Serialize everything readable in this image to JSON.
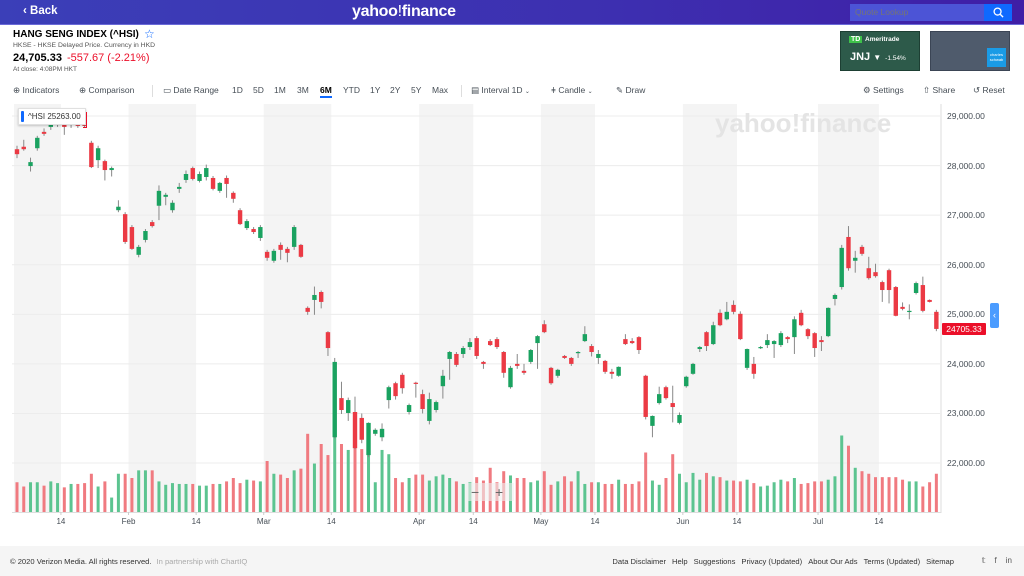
{
  "header": {
    "back_label": "Back",
    "logo_text_1": "yahoo",
    "logo_text_2": "!",
    "logo_text_3": "finance",
    "search_placeholder": "Quote Lookup",
    "search_icon": "magnifier"
  },
  "quote": {
    "title": "HANG SENG INDEX (^HSI)",
    "subtitle": "HKSE - HKSE Delayed Price. Currency in HKD",
    "price": "24,705.33",
    "change": "-557.67 (-2.21%)",
    "close_time": "At close: 4:08PM HKT"
  },
  "ads": [
    {
      "brand": "Ameritrade",
      "logo": "TD",
      "ticker": "JNJ",
      "change": "-1.54%"
    },
    {
      "brand": "charles schwab"
    }
  ],
  "toolbar": {
    "indicators": "Indicators",
    "comparison": "Comparison",
    "date_range": "Date Range",
    "ranges": [
      "1D",
      "5D",
      "1M",
      "3M",
      "6M",
      "YTD",
      "1Y",
      "2Y",
      "5Y",
      "Max"
    ],
    "active_range": "6M",
    "interval": "Interval",
    "interval_value": "1D",
    "chart_type": "Candle",
    "draw": "Draw",
    "settings": "Settings",
    "share": "Share",
    "reset": "Reset"
  },
  "chart_overlay": {
    "tooltip": "^HSI  25263.00",
    "last_price": "24705.33",
    "watermark": "yahoo!finance",
    "zoom_out": "−",
    "zoom_in": "+",
    "panel_toggle": "‹"
  },
  "colors": {
    "up": "#1aa260",
    "down": "#eb3a44",
    "accent": "#0f69ff"
  },
  "chart_data": {
    "type": "candlestick",
    "symbol": "^HSI",
    "ylim": [
      21000,
      29250
    ],
    "y_ticks": [
      "29,000.00",
      "28,000.00",
      "27,000.00",
      "26,000.00",
      "25,000.00",
      "24,000.00",
      "23,000.00",
      "22,000.00"
    ],
    "y_tick_values": [
      29000,
      28000,
      27000,
      26000,
      25000,
      24000,
      23000,
      22000
    ],
    "x_ticks": [
      "14",
      "Feb",
      "14",
      "Mar",
      "14",
      "Apr",
      "14",
      "May",
      "14",
      "Jun",
      "14",
      "Jul",
      "14"
    ],
    "x_tick_candle_index": [
      7,
      17,
      27,
      37,
      47,
      60,
      68,
      78,
      86,
      99,
      107,
      119,
      128
    ],
    "month_start_index": [
      0,
      17,
      37,
      60,
      78,
      99,
      119
    ],
    "month_mid_index": [
      7,
      27,
      47,
      68,
      86,
      107,
      128
    ],
    "ohlc": [
      [
        28330,
        28400,
        28150,
        28230
      ],
      [
        28380,
        28520,
        28300,
        28330
      ],
      [
        27990,
        28160,
        27880,
        28070
      ],
      [
        28350,
        28600,
        28300,
        28560
      ],
      [
        28680,
        28750,
        28600,
        28640
      ],
      [
        28780,
        28880,
        28720,
        28840
      ],
      [
        28820,
        28900,
        28780,
        28860
      ],
      [
        28840,
        28880,
        28620,
        28780
      ],
      [
        28820,
        28900,
        28760,
        28860
      ],
      [
        28840,
        28900,
        28760,
        28800
      ],
      [
        28880,
        28940,
        28760,
        28800
      ],
      [
        28460,
        28500,
        27950,
        27970
      ],
      [
        28110,
        28400,
        27950,
        28350
      ],
      [
        28090,
        28120,
        27700,
        27910
      ],
      [
        27910,
        27980,
        27780,
        27950
      ],
      [
        27100,
        27300,
        27060,
        27170
      ],
      [
        27020,
        27060,
        26420,
        26460
      ],
      [
        26760,
        26800,
        26300,
        26320
      ],
      [
        26200,
        26400,
        26150,
        26360
      ],
      [
        26500,
        26720,
        26450,
        26680
      ],
      [
        26860,
        26900,
        26750,
        26780
      ],
      [
        27190,
        27600,
        26900,
        27490
      ],
      [
        27370,
        27450,
        27200,
        27410
      ],
      [
        27100,
        27300,
        27050,
        27250
      ],
      [
        27530,
        27650,
        27450,
        27570
      ],
      [
        27710,
        27900,
        27650,
        27830
      ],
      [
        27950,
        27980,
        27700,
        27730
      ],
      [
        27690,
        27880,
        27660,
        27830
      ],
      [
        27770,
        28020,
        27700,
        27950
      ],
      [
        27750,
        27790,
        27500,
        27530
      ],
      [
        27490,
        27670,
        27450,
        27650
      ],
      [
        27750,
        27800,
        27350,
        27630
      ],
      [
        27450,
        27480,
        27250,
        27330
      ],
      [
        27100,
        27140,
        26800,
        26820
      ],
      [
        26740,
        26920,
        26700,
        26880
      ],
      [
        26720,
        26760,
        26620,
        26660
      ],
      [
        26540,
        26800,
        26480,
        26760
      ],
      [
        26260,
        26300,
        26080,
        26140
      ],
      [
        26080,
        26320,
        26040,
        26280
      ],
      [
        26400,
        26450,
        26100,
        26300
      ],
      [
        26320,
        26360,
        26050,
        26240
      ],
      [
        26360,
        26800,
        26300,
        26760
      ],
      [
        26400,
        26420,
        26140,
        26160
      ],
      [
        25130,
        25160,
        24990,
        25050
      ],
      [
        25290,
        25560,
        24990,
        25390
      ],
      [
        25450,
        25480,
        25120,
        25250
      ],
      [
        24640,
        24660,
        24160,
        24320
      ],
      [
        22520,
        24120,
        22500,
        24040
      ],
      [
        23310,
        23640,
        22990,
        23070
      ],
      [
        23010,
        23320,
        22850,
        23270
      ],
      [
        23030,
        23340,
        22280,
        22300
      ],
      [
        22910,
        23000,
        22400,
        22470
      ],
      [
        22160,
        22820,
        22120,
        22810
      ],
      [
        22590,
        22700,
        22550,
        22670
      ],
      [
        22520,
        22800,
        22440,
        22690
      ],
      [
        23270,
        23560,
        23100,
        23530
      ],
      [
        23610,
        23640,
        23280,
        23350
      ],
      [
        23780,
        23820,
        23400,
        23510
      ],
      [
        23030,
        23200,
        22980,
        23170
      ],
      [
        23620,
        23640,
        23320,
        23600
      ],
      [
        23390,
        23480,
        23000,
        23090
      ],
      [
        22850,
        23420,
        22780,
        23290
      ],
      [
        23070,
        23260,
        23020,
        23230
      ],
      [
        23550,
        23880,
        23300,
        23760
      ],
      [
        24100,
        24260,
        23680,
        24240
      ],
      [
        24200,
        24240,
        23940,
        23980
      ],
      [
        24200,
        24360,
        24120,
        24320
      ],
      [
        24340,
        24520,
        24280,
        24440
      ],
      [
        24520,
        24560,
        24100,
        24160
      ],
      [
        24040,
        24060,
        23900,
        24000
      ],
      [
        24460,
        24500,
        24360,
        24380
      ],
      [
        24500,
        24540,
        24300,
        24340
      ],
      [
        24240,
        24260,
        23720,
        23820
      ],
      [
        23530,
        23960,
        23500,
        23920
      ],
      [
        24000,
        24200,
        23900,
        23960
      ],
      [
        23860,
        24000,
        23780,
        23820
      ],
      [
        24040,
        24300,
        24000,
        24280
      ],
      [
        24420,
        24580,
        23900,
        24560
      ],
      [
        24800,
        24880,
        24620,
        24640
      ],
      [
        23920,
        23940,
        23580,
        23610
      ],
      [
        23760,
        23900,
        23720,
        23880
      ],
      [
        24160,
        24180,
        24100,
        24120
      ],
      [
        24120,
        24140,
        23960,
        24000
      ],
      [
        24220,
        24260,
        24120,
        24240
      ],
      [
        24460,
        24760,
        24440,
        24600
      ],
      [
        24360,
        24400,
        24150,
        24240
      ],
      [
        24120,
        24280,
        24000,
        24200
      ],
      [
        24060,
        24080,
        23800,
        23840
      ],
      [
        23840,
        23900,
        23700,
        23800
      ],
      [
        23760,
        23950,
        23740,
        23940
      ],
      [
        24500,
        24600,
        24380,
        24400
      ],
      [
        24460,
        24520,
        24400,
        24420
      ],
      [
        24540,
        24560,
        24200,
        24280
      ],
      [
        23760,
        23780,
        22880,
        22930
      ],
      [
        22750,
        22960,
        22520,
        22950
      ],
      [
        23210,
        23540,
        23180,
        23390
      ],
      [
        23530,
        23560,
        23280,
        23310
      ],
      [
        23210,
        23560,
        22820,
        23130
      ],
      [
        22810,
        23020,
        22780,
        22970
      ],
      [
        23550,
        23760,
        23520,
        23740
      ],
      [
        23800,
        24020,
        23780,
        24000
      ],
      [
        24300,
        24360,
        24240,
        24340
      ],
      [
        24640,
        24660,
        24260,
        24360
      ],
      [
        24400,
        24850,
        24380,
        24780
      ],
      [
        25030,
        25100,
        24760,
        24780
      ],
      [
        24900,
        25250,
        24880,
        25050
      ],
      [
        25190,
        25280,
        25000,
        25050
      ],
      [
        25010,
        25060,
        24480,
        24500
      ],
      [
        23920,
        24310,
        23880,
        24300
      ],
      [
        24000,
        24140,
        23700,
        23800
      ],
      [
        24320,
        24360,
        24300,
        24340
      ],
      [
        24380,
        24600,
        24320,
        24480
      ],
      [
        24400,
        24480,
        24120,
        24460
      ],
      [
        24380,
        24660,
        24340,
        24620
      ],
      [
        24540,
        24560,
        24420,
        24500
      ],
      [
        24540,
        24960,
        24200,
        24900
      ],
      [
        25030,
        25090,
        24760,
        24780
      ],
      [
        24700,
        24720,
        24500,
        24560
      ],
      [
        24620,
        24640,
        24140,
        24320
      ],
      [
        24480,
        24560,
        24260,
        24440
      ],
      [
        24560,
        25140,
        24540,
        25130
      ],
      [
        25310,
        25420,
        25180,
        25390
      ],
      [
        25550,
        26400,
        25500,
        26340
      ],
      [
        26560,
        26780,
        25880,
        25930
      ],
      [
        26080,
        26280,
        25840,
        26140
      ],
      [
        26360,
        26400,
        26180,
        26220
      ],
      [
        25930,
        26160,
        25700,
        25730
      ],
      [
        25850,
        26020,
        25740,
        25770
      ],
      [
        25650,
        25680,
        25250,
        25490
      ],
      [
        25890,
        25920,
        25220,
        25490
      ],
      [
        25550,
        25570,
        24960,
        24970
      ],
      [
        25150,
        25240,
        25080,
        25110
      ],
      [
        25050,
        25200,
        24900,
        25070
      ],
      [
        25430,
        25660,
        25400,
        25630
      ],
      [
        25590,
        25760,
        25040,
        25070
      ],
      [
        25290,
        25300,
        25240,
        25250
      ],
      [
        25050,
        25090,
        24660,
        24705.33
      ]
    ],
    "volume_relative": [
      35,
      30,
      35,
      35,
      31,
      36,
      34,
      29,
      33,
      33,
      34,
      45,
      30,
      36,
      17,
      45,
      45,
      40,
      49,
      49,
      49,
      36,
      32,
      34,
      33,
      33,
      33,
      31,
      31,
      33,
      33,
      36,
      40,
      34,
      38,
      37,
      36,
      60,
      45,
      44,
      40,
      49,
      51,
      92,
      57,
      80,
      67,
      96,
      80,
      73,
      84,
      74,
      73,
      35,
      73,
      68,
      40,
      35,
      40,
      44,
      44,
      37,
      42,
      44,
      40,
      36,
      33,
      35,
      41,
      37,
      52,
      35,
      48,
      43,
      40,
      40,
      35,
      37,
      48,
      32,
      36,
      42,
      36,
      48,
      33,
      35,
      35,
      33,
      33,
      38,
      33,
      33,
      36,
      70,
      37,
      32,
      40,
      68,
      45,
      35,
      46,
      38,
      46,
      42,
      41,
      37,
      37,
      36,
      38,
      34,
      30,
      31,
      35,
      38,
      36,
      40,
      33,
      34,
      36,
      36,
      38,
      42,
      90,
      78,
      52,
      48,
      45,
      41,
      41,
      41,
      41,
      38,
      36,
      36,
      30,
      35,
      45
    ]
  },
  "footer": {
    "copyright": "© 2020 Verizon Media. All rights reserved.",
    "partner": "In partnership with ChartIQ",
    "links": [
      "Data Disclaimer",
      "Help",
      "Suggestions",
      "Privacy (Updated)",
      "About Our Ads",
      "Terms (Updated)",
      "Sitemap"
    ],
    "social": [
      "twitter",
      "facebook",
      "linkedin"
    ]
  }
}
